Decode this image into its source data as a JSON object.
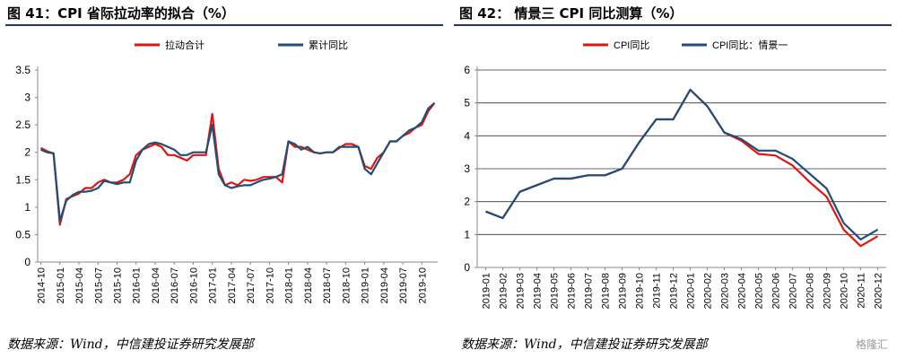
{
  "left": {
    "title": "图 41：CPI 省际拉动率的拟合（%）",
    "source": "数据来源：Wind，中信建投证券研究发展部"
  },
  "right": {
    "title": "图 42：   情景三 CPI 同比测算（%）",
    "source": "数据来源：Wind，中信建投证券研究发展部"
  },
  "watermark": "格隆汇",
  "chart_data": [
    {
      "type": "line",
      "title": "",
      "xlabel": "",
      "ylabel": "",
      "ylim": [
        0,
        3.5
      ],
      "yticks": [
        "0",
        "0.5",
        "1",
        "1.5",
        "2",
        "2.5",
        "3",
        "3.5"
      ],
      "grid": false,
      "legend": "top",
      "x": [
        "2014-10",
        "2014-11",
        "2014-12",
        "2015-01",
        "2015-02",
        "2015-03",
        "2015-04",
        "2015-05",
        "2015-06",
        "2015-07",
        "2015-08",
        "2015-09",
        "2015-10",
        "2015-11",
        "2015-12",
        "2016-01",
        "2016-02",
        "2016-03",
        "2016-04",
        "2016-05",
        "2016-06",
        "2016-07",
        "2016-08",
        "2016-09",
        "2016-10",
        "2016-11",
        "2016-12",
        "2017-01",
        "2017-02",
        "2017-03",
        "2017-04",
        "2017-05",
        "2017-06",
        "2017-07",
        "2017-08",
        "2017-09",
        "2017-10",
        "2017-11",
        "2017-12",
        "2018-01",
        "2018-02",
        "2018-03",
        "2018-04",
        "2018-05",
        "2018-06",
        "2018-07",
        "2018-08",
        "2018-09",
        "2018-10",
        "2018-11",
        "2018-12",
        "2019-01",
        "2019-02",
        "2019-03",
        "2019-04",
        "2019-05",
        "2019-06",
        "2019-07",
        "2019-08",
        "2019-09",
        "2019-10",
        "2019-11",
        "2019-12"
      ],
      "x_tick_labels": [
        "2014-10",
        "2015-01",
        "2015-04",
        "2015-07",
        "2015-10",
        "2016-01",
        "2016-04",
        "2016-07",
        "2016-10",
        "2017-01",
        "2017-04",
        "2017-07",
        "2017-10",
        "2018-01",
        "2018-04",
        "2018-07",
        "2018-10",
        "2019-01",
        "2019-04",
        "2019-07",
        "2019-10"
      ],
      "series": [
        {
          "name": "拉动合计",
          "color": "#e3140f",
          "values": [
            2.08,
            2.02,
            1.98,
            0.68,
            1.15,
            1.2,
            1.25,
            1.35,
            1.35,
            1.45,
            1.5,
            1.45,
            1.45,
            1.5,
            1.6,
            1.95,
            2.05,
            2.1,
            2.15,
            2.1,
            1.95,
            1.95,
            1.9,
            1.85,
            1.95,
            1.95,
            1.95,
            2.7,
            1.7,
            1.4,
            1.45,
            1.4,
            1.5,
            1.48,
            1.5,
            1.55,
            1.55,
            1.55,
            1.45,
            2.2,
            2.1,
            2.1,
            2.05,
            2.0,
            1.98,
            2.0,
            2.0,
            2.08,
            2.15,
            2.15,
            2.1,
            1.75,
            1.7,
            1.9,
            2.0,
            2.2,
            2.2,
            2.3,
            2.35,
            2.45,
            2.5,
            2.75,
            2.9
          ]
        },
        {
          "name": "累计同比",
          "color": "#1f4e79",
          "values": [
            2.05,
            2.0,
            1.98,
            0.75,
            1.12,
            1.22,
            1.28,
            1.28,
            1.3,
            1.35,
            1.48,
            1.45,
            1.42,
            1.45,
            1.45,
            1.85,
            2.05,
            2.15,
            2.18,
            2.15,
            2.1,
            2.05,
            1.95,
            1.95,
            2.0,
            2.0,
            2.0,
            2.5,
            1.6,
            1.4,
            1.35,
            1.38,
            1.4,
            1.4,
            1.45,
            1.5,
            1.52,
            1.55,
            1.6,
            2.2,
            2.15,
            2.05,
            2.1,
            2.0,
            1.98,
            2.0,
            2.0,
            2.1,
            2.1,
            2.1,
            2.1,
            1.7,
            1.6,
            1.8,
            2.0,
            2.2,
            2.2,
            2.3,
            2.4,
            2.45,
            2.55,
            2.8,
            2.9
          ]
        }
      ]
    },
    {
      "type": "line",
      "title": "",
      "xlabel": "",
      "ylabel": "",
      "ylim": [
        0,
        6
      ],
      "yticks": [
        "0",
        "1",
        "2",
        "3",
        "4",
        "5",
        "6"
      ],
      "grid": true,
      "legend": "top",
      "x": [
        "2019-01",
        "2019-02",
        "2019-03",
        "2019-04",
        "2019-05",
        "2019-06",
        "2019-07",
        "2019-08",
        "2019-09",
        "2019-10",
        "2019-11",
        "2019-12",
        "2020-01",
        "2020-02",
        "2020-03",
        "2020-04",
        "2020-05",
        "2020-06",
        "2020-07",
        "2020-08",
        "2020-09",
        "2020-10",
        "2020-11",
        "2020-12"
      ],
      "x_tick_labels": [
        "2019-01",
        "2019-02",
        "2019-03",
        "2019-04",
        "2019-05",
        "2019-06",
        "2019-07",
        "2019-08",
        "2019-09",
        "2019-10",
        "2019-11",
        "2019-12",
        "2020-01",
        "2020-02",
        "2020-03",
        "2020-04",
        "2020-05",
        "2020-06",
        "2020-07",
        "2020-08",
        "2020-09",
        "2020-10",
        "2020-11",
        "2020-12"
      ],
      "series": [
        {
          "name": "CPI同比",
          "color": "#e3140f",
          "values": [
            1.7,
            1.5,
            2.3,
            2.5,
            2.7,
            2.7,
            2.8,
            2.8,
            3.0,
            3.8,
            4.5,
            4.5,
            5.4,
            4.9,
            4.1,
            3.85,
            3.45,
            3.4,
            3.1,
            2.6,
            2.15,
            1.15,
            0.65,
            0.95
          ]
        },
        {
          "name": "CPI同比：情景一",
          "color": "#1f4e79",
          "values": [
            1.7,
            1.5,
            2.3,
            2.5,
            2.7,
            2.7,
            2.8,
            2.8,
            3.0,
            3.8,
            4.5,
            4.5,
            5.4,
            4.9,
            4.1,
            3.9,
            3.55,
            3.55,
            3.3,
            2.85,
            2.4,
            1.35,
            0.85,
            1.15
          ]
        }
      ]
    }
  ]
}
